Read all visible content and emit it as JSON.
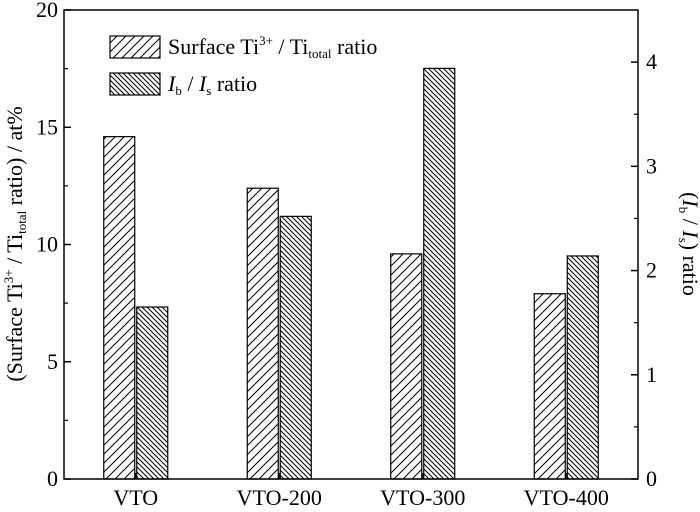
{
  "chart_data": {
    "type": "bar",
    "categories": [
      "VTO",
      "VTO-200",
      "VTO-300",
      "VTO-400"
    ],
    "series": [
      {
        "name": "Surface Ti3+ / Ti_total ratio",
        "axis": "left",
        "values": [
          14.6,
          12.4,
          9.6,
          7.9
        ],
        "pattern": "forward-diagonal-hatch"
      },
      {
        "name": "Ib / Is ratio",
        "axis": "right",
        "values": [
          1.65,
          2.52,
          3.94,
          2.14
        ],
        "pattern": "backward-diagonal-hatch-dense"
      }
    ],
    "y_left": {
      "label": "(Surface Ti3+ / Ti_total ratio) / at%",
      "lim": [
        0,
        20
      ],
      "ticks": [
        "0",
        "5",
        "10",
        "15",
        "20"
      ]
    },
    "y_right": {
      "label": "(Ib / Is) ratio",
      "lim": [
        0,
        4.5
      ],
      "ticks": [
        "0",
        "1",
        "2",
        "3",
        "4"
      ]
    },
    "legend": {
      "placement": "top-left",
      "entries": [
        {
          "prefix": "Surface Ti",
          "sup": "3+",
          "mid": " / Ti",
          "sub": "total",
          "suffix": " ratio"
        },
        {
          "italic1": "I",
          "sub1": "b",
          "mid": " / ",
          "italic2": "I",
          "sub2": "s",
          "suffix": " ratio"
        }
      ]
    },
    "y_left_label_parts": {
      "prefix": "(Surface Ti",
      "sup": "3+",
      "mid": " / Ti",
      "sub": "total",
      "suffix": " ratio) / at%"
    },
    "y_right_label_parts": {
      "open": "(",
      "italic1": "I",
      "sub1": "b",
      "mid": " / ",
      "italic2": "I",
      "sub2": "s",
      "suffix": ") ratio"
    },
    "grid": false
  }
}
